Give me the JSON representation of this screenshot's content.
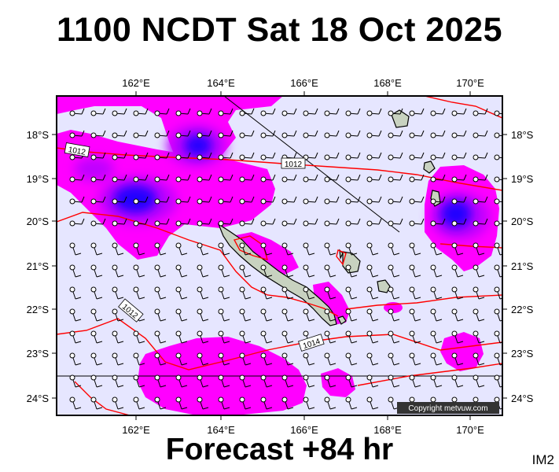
{
  "title": "1100 NCDT Sat 18 Oct 2025",
  "footer": "Forecast +84 hr",
  "code": "IM2",
  "copyright": "Copyright metvuw.com",
  "colors": {
    "background": "#e6e6ff",
    "rain_light": "#ff00ff",
    "rain_mid": "#c000ff",
    "rain_heavy": "#2000ff",
    "isobar": "#ff0000",
    "land": "#c8d2c0"
  },
  "axes": {
    "lon_labels": [
      "162°E",
      "164°E",
      "166°E",
      "168°E",
      "170°E"
    ],
    "lat_labels": [
      "18°S",
      "19°S",
      "20°S",
      "21°S",
      "22°S",
      "23°S",
      "24°S"
    ]
  },
  "isobar_labels": [
    "1012",
    "1012",
    "1012",
    "1014"
  ]
}
